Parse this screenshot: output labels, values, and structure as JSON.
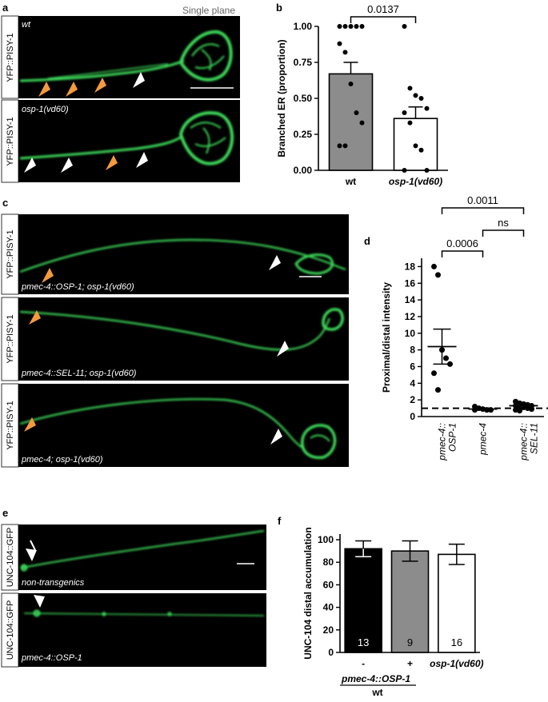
{
  "panel_letters": [
    "a",
    "b",
    "c",
    "d",
    "e",
    "f"
  ],
  "panel_a": {
    "header": "Single plane",
    "images": [
      {
        "side_label": "YFP::PISY-1",
        "genotype": "wt"
      },
      {
        "side_label": "YFP::PISY-1",
        "genotype": "osp-1(vd60)"
      }
    ]
  },
  "panel_c": {
    "images": [
      {
        "side_label": "YFP::PISY-1",
        "genotype": "pmec-4::OSP-1; osp-1(vd60)"
      },
      {
        "side_label": "YFP::PISY-1",
        "genotype": "pmec-4::SEL-11; osp-1(vd60)"
      },
      {
        "side_label": "YFP::PISY-1",
        "genotype": "pmec-4; osp-1(vd60)"
      }
    ]
  },
  "panel_e": {
    "images": [
      {
        "side_label": "UNC-104::GFP",
        "genotype": "non-transgenics"
      },
      {
        "side_label": "UNC-104::GFP",
        "genotype": "pmec-4::OSP-1"
      }
    ]
  },
  "colors": {
    "gfp": "#3ddc5a",
    "orange_arrow": "#f39a3d",
    "white_arrow": "#ffffff",
    "grey_bar": "#8c8c8c",
    "black_bar": "#000000"
  },
  "chart_data": [
    {
      "panel": "b",
      "type": "bar",
      "ylabel": "Branched ER (proportion)",
      "ylim": [
        0,
        1.0
      ],
      "yticks": [
        "0.00",
        "0.25",
        "0.50",
        "0.75",
        "1.00"
      ],
      "categories": [
        "wt",
        "osp-1(vd60)"
      ],
      "values": [
        0.67,
        0.36
      ],
      "errors": [
        0.08,
        0.08
      ],
      "points": [
        [
          1.0,
          1.0,
          1.0,
          1.0,
          1.0,
          0.88,
          0.82,
          0.6,
          0.4,
          0.33,
          0.17,
          0.17
        ],
        [
          1.0,
          0.57,
          0.52,
          0.5,
          0.43,
          0.4,
          0.33,
          0.17,
          0.14,
          0.0,
          0.0
        ]
      ],
      "significance": [
        {
          "pair": [
            0,
            1
          ],
          "label": "0.0137"
        }
      ]
    },
    {
      "panel": "d",
      "type": "bar",
      "ylabel": "Proximal/distal intensity",
      "ylim": [
        0,
        19
      ],
      "yticks": [
        "0",
        "2",
        "4",
        "6",
        "8",
        "10",
        "12",
        "14",
        "16",
        "18"
      ],
      "categories": [
        "pmec-4::\nOSP-1",
        "pmec-4",
        "pmec-4::\nSEL-11"
      ],
      "values": [
        8.4,
        0.9,
        1.3
      ],
      "errors": [
        2.1,
        0.12,
        0.15
      ],
      "points": [
        [
          18.0,
          17.0,
          8.0,
          7.0,
          6.3,
          5.2,
          3.2
        ],
        [
          1.2,
          1.0,
          0.9,
          0.8,
          0.8,
          0.8
        ],
        [
          1.8,
          1.6,
          1.5,
          1.4,
          1.3,
          1.3,
          1.2,
          1.1,
          1.0,
          0.9,
          0.8,
          0.7
        ]
      ],
      "reference_line": 1,
      "significance": [
        {
          "pair": [
            0,
            2
          ],
          "label": "0.0011"
        },
        {
          "pair": [
            0,
            1
          ],
          "label": "0.0006"
        },
        {
          "pair": [
            1,
            2
          ],
          "label": "ns"
        }
      ]
    },
    {
      "panel": "f",
      "type": "bar",
      "ylabel": "UNC-104 distal accumulation",
      "ylim": [
        0,
        105
      ],
      "yticks": [
        "0",
        "20",
        "40",
        "60",
        "80",
        "100"
      ],
      "categories": [
        "-",
        "+",
        "osp-1(vd60)"
      ],
      "values": [
        92,
        90,
        87
      ],
      "errors": [
        7,
        9,
        9
      ],
      "n_labels": [
        "13",
        "9",
        "16"
      ],
      "group_label_1": "pmec-4::OSP-1",
      "group_label_2": "wt"
    }
  ]
}
